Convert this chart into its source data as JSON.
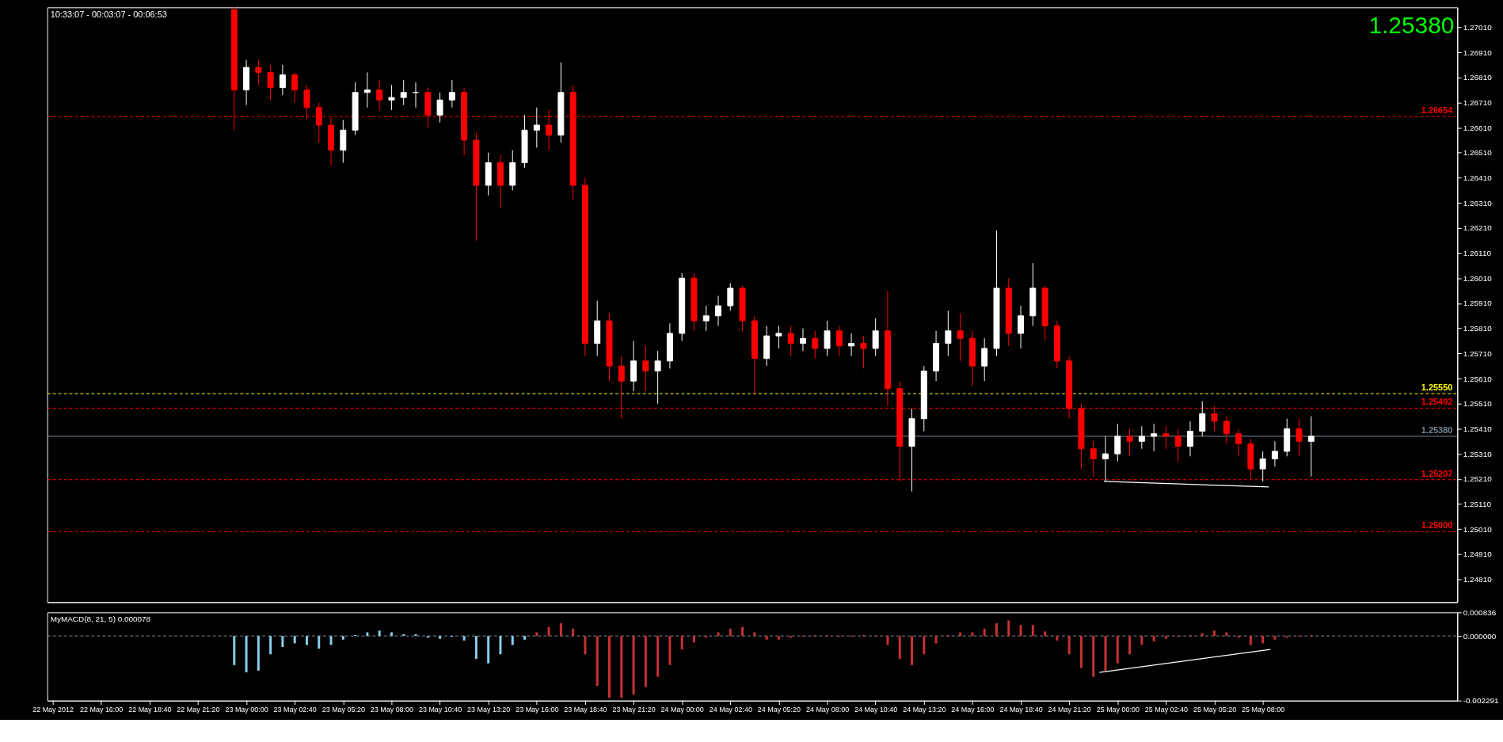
{
  "chart_data": [
    {
      "type": "candlestick",
      "tick_labels": "y",
      "grid": false,
      "annotations": [
        "10:33:07 - 00:03:07 - 00:06:53",
        "1.25380"
      ],
      "xlim": [
        "2012-05-22T13:15",
        "2012-05-25T18:30"
      ],
      "ylim": [
        1.24719,
        1.27089
      ],
      "yticks": [
        {
          "value": 1.2481,
          "label": "1.24810"
        },
        {
          "value": 1.2491,
          "label": "1.24910"
        },
        {
          "value": 1.2501,
          "label": "1.25010"
        },
        {
          "value": 1.2511,
          "label": "1.25110"
        },
        {
          "value": 1.2521,
          "label": "1.25210"
        },
        {
          "value": 1.2531,
          "label": "1.25310"
        },
        {
          "value": 1.2541,
          "label": "1.25410"
        },
        {
          "value": 1.2551,
          "label": "1.25510"
        },
        {
          "value": 1.2561,
          "label": "1.25610"
        },
        {
          "value": 1.2571,
          "label": "1.25710"
        },
        {
          "value": 1.2581,
          "label": "1.25810"
        },
        {
          "value": 1.2591,
          "label": "1.25910"
        },
        {
          "value": 1.2601,
          "label": "1.26010"
        },
        {
          "value": 1.2611,
          "label": "1.26110"
        },
        {
          "value": 1.2621,
          "label": "1.26210"
        },
        {
          "value": 1.2631,
          "label": "1.26310"
        },
        {
          "value": 1.2641,
          "label": "1.26410"
        },
        {
          "value": 1.2651,
          "label": "1.26510"
        },
        {
          "value": 1.2661,
          "label": "1.26610"
        },
        {
          "value": 1.2671,
          "label": "1.26710"
        },
        {
          "value": 1.2681,
          "label": "1.26810"
        },
        {
          "value": 1.2691,
          "label": "1.26910"
        },
        {
          "value": 1.2701,
          "label": "1.27010"
        }
      ],
      "ref_lines": [
        {
          "axis": "y",
          "value": 1.26654,
          "label": "1.26654",
          "color": "#ff0000",
          "line_style": "dashed"
        },
        {
          "axis": "y",
          "value": 1.2555,
          "label": "1.25550",
          "color": "#ffff00",
          "line_style": "dashed"
        },
        {
          "axis": "y",
          "value": 1.25492,
          "label": "1.25492",
          "color": "#ff0000",
          "line_style": "dashed"
        },
        {
          "axis": "y",
          "value": 1.2538,
          "label": "1.25380",
          "color": "#778899",
          "line_style": "solid"
        },
        {
          "axis": "y",
          "value": 1.25207,
          "label": "1.25207",
          "color": "#ff0000",
          "line_style": "dashed"
        },
        {
          "axis": "y",
          "value": 1.25,
          "label": "1.25000",
          "color": "#ff0000",
          "line_style": "dashed"
        }
      ],
      "x": [
        "2012-05-22T23:20",
        "2012-05-23T00:00",
        "2012-05-23T00:40",
        "2012-05-23T01:20",
        "2012-05-23T02:00",
        "2012-05-23T02:40",
        "2012-05-23T03:20",
        "2012-05-23T04:00",
        "2012-05-23T04:40",
        "2012-05-23T05:20",
        "2012-05-23T06:00",
        "2012-05-23T06:40",
        "2012-05-23T07:20",
        "2012-05-23T08:00",
        "2012-05-23T08:40",
        "2012-05-23T09:20",
        "2012-05-23T10:00",
        "2012-05-23T10:40",
        "2012-05-23T11:20",
        "2012-05-23T12:00",
        "2012-05-23T12:40",
        "2012-05-23T13:20",
        "2012-05-23T14:00",
        "2012-05-23T14:40",
        "2012-05-23T15:20",
        "2012-05-23T16:00",
        "2012-05-23T16:40",
        "2012-05-23T17:20",
        "2012-05-23T18:00",
        "2012-05-23T18:40",
        "2012-05-23T19:20",
        "2012-05-23T20:00",
        "2012-05-23T20:40",
        "2012-05-23T21:20",
        "2012-05-23T22:00",
        "2012-05-23T22:40",
        "2012-05-23T23:20",
        "2012-05-24T00:00",
        "2012-05-24T00:40",
        "2012-05-24T01:20",
        "2012-05-24T02:00",
        "2012-05-24T02:40",
        "2012-05-24T03:20",
        "2012-05-24T04:00",
        "2012-05-24T04:40",
        "2012-05-24T05:20",
        "2012-05-24T06:00",
        "2012-05-24T06:40",
        "2012-05-24T07:20",
        "2012-05-24T08:00",
        "2012-05-24T08:40",
        "2012-05-24T09:20",
        "2012-05-24T10:00",
        "2012-05-24T10:40",
        "2012-05-24T11:20",
        "2012-05-24T12:00",
        "2012-05-24T12:40",
        "2012-05-24T13:20",
        "2012-05-24T14:00",
        "2012-05-24T14:40",
        "2012-05-24T15:20",
        "2012-05-24T16:00",
        "2012-05-24T16:40",
        "2012-05-24T17:20",
        "2012-05-24T18:00",
        "2012-05-24T18:40",
        "2012-05-24T19:20",
        "2012-05-24T20:00",
        "2012-05-24T20:40",
        "2012-05-24T21:20",
        "2012-05-24T22:00",
        "2012-05-24T22:40",
        "2012-05-24T23:20",
        "2012-05-25T00:00",
        "2012-05-25T00:40",
        "2012-05-25T01:20",
        "2012-05-25T02:00",
        "2012-05-25T02:40",
        "2012-05-25T03:20",
        "2012-05-25T04:00",
        "2012-05-25T04:40",
        "2012-05-25T05:20",
        "2012-05-25T06:00",
        "2012-05-25T06:40",
        "2012-05-25T07:20",
        "2012-05-25T08:00",
        "2012-05-25T08:40",
        "2012-05-25T09:20",
        "2012-05-25T10:00",
        "2012-05-25T10:40"
      ],
      "ohlc": [
        [
          1.2708,
          1.2709,
          1.266,
          1.2676
        ],
        [
          1.2676,
          1.2688,
          1.267,
          1.2685
        ],
        [
          1.2685,
          1.2688,
          1.2678,
          1.2683
        ],
        [
          1.2683,
          1.2686,
          1.2672,
          1.2677
        ],
        [
          1.2677,
          1.2686,
          1.2674,
          1.2682
        ],
        [
          1.2682,
          1.2683,
          1.2671,
          1.2676
        ],
        [
          1.2676,
          1.2678,
          1.2664,
          1.2669
        ],
        [
          1.2669,
          1.2671,
          1.2655,
          1.2662
        ],
        [
          1.2662,
          1.2665,
          1.2646,
          1.2652
        ],
        [
          1.2652,
          1.2664,
          1.2647,
          1.266
        ],
        [
          1.266,
          1.2679,
          1.2658,
          1.2675
        ],
        [
          1.2675,
          1.2683,
          1.2669,
          1.2676
        ],
        [
          1.2676,
          1.268,
          1.2668,
          1.2672
        ],
        [
          1.2672,
          1.2678,
          1.2668,
          1.2673
        ],
        [
          1.2673,
          1.268,
          1.267,
          1.2675
        ],
        [
          1.2675,
          1.2679,
          1.2669,
          1.2675
        ],
        [
          1.2675,
          1.2677,
          1.2661,
          1.2666
        ],
        [
          1.2666,
          1.2675,
          1.2663,
          1.2672
        ],
        [
          1.2672,
          1.268,
          1.2669,
          1.2675
        ],
        [
          1.2675,
          1.2677,
          1.265,
          1.2656
        ],
        [
          1.2656,
          1.2659,
          1.2616,
          1.2638
        ],
        [
          1.2638,
          1.2651,
          1.2634,
          1.2647
        ],
        [
          1.2647,
          1.265,
          1.2629,
          1.2638
        ],
        [
          1.2638,
          1.2652,
          1.2636,
          1.2647
        ],
        [
          1.2647,
          1.2666,
          1.2645,
          1.266
        ],
        [
          1.266,
          1.2669,
          1.2653,
          1.2662
        ],
        [
          1.2662,
          1.2668,
          1.2652,
          1.2658
        ],
        [
          1.2658,
          1.2687,
          1.2655,
          1.2675
        ],
        [
          1.2675,
          1.2678,
          1.2632,
          1.2638
        ],
        [
          1.2638,
          1.2641,
          1.257,
          1.2575
        ],
        [
          1.2575,
          1.2592,
          1.257,
          1.2584
        ],
        [
          1.2584,
          1.2587,
          1.256,
          1.2566
        ],
        [
          1.2566,
          1.257,
          1.2545,
          1.256
        ],
        [
          1.256,
          1.2576,
          1.2556,
          1.2568
        ],
        [
          1.2568,
          1.2574,
          1.2556,
          1.2564
        ],
        [
          1.2564,
          1.2572,
          1.2551,
          1.2568
        ],
        [
          1.2568,
          1.2583,
          1.2565,
          1.2579
        ],
        [
          1.2579,
          1.2603,
          1.2576,
          1.2601
        ],
        [
          1.2601,
          1.2603,
          1.258,
          1.2584
        ],
        [
          1.2584,
          1.259,
          1.258,
          1.2586
        ],
        [
          1.2586,
          1.2594,
          1.2582,
          1.259
        ],
        [
          1.259,
          1.2599,
          1.2588,
          1.2597
        ],
        [
          1.2597,
          1.2598,
          1.258,
          1.2584
        ],
        [
          1.2584,
          1.2586,
          1.2555,
          1.2569
        ],
        [
          1.2569,
          1.2582,
          1.2566,
          1.2578
        ],
        [
          1.2578,
          1.2582,
          1.2573,
          1.2579
        ],
        [
          1.2579,
          1.2582,
          1.257,
          1.2575
        ],
        [
          1.2575,
          1.2581,
          1.2572,
          1.2577
        ],
        [
          1.2577,
          1.258,
          1.2569,
          1.2573
        ],
        [
          1.2573,
          1.2584,
          1.257,
          1.258
        ],
        [
          1.258,
          1.2582,
          1.257,
          1.2574
        ],
        [
          1.2574,
          1.2579,
          1.257,
          1.2575
        ],
        [
          1.2575,
          1.2578,
          1.2565,
          1.2573
        ],
        [
          1.2573,
          1.2585,
          1.257,
          1.258
        ],
        [
          1.258,
          1.2596,
          1.255,
          1.2557
        ],
        [
          1.2557,
          1.256,
          1.252,
          1.2534
        ],
        [
          1.2534,
          1.2549,
          1.2516,
          1.2545
        ],
        [
          1.2545,
          1.2566,
          1.254,
          1.2564
        ],
        [
          1.2564,
          1.258,
          1.256,
          1.2575
        ],
        [
          1.2575,
          1.2588,
          1.257,
          1.258
        ],
        [
          1.258,
          1.2587,
          1.2568,
          1.2577
        ],
        [
          1.2577,
          1.258,
          1.2558,
          1.2566
        ],
        [
          1.2566,
          1.2577,
          1.256,
          1.2573
        ],
        [
          1.2573,
          1.262,
          1.257,
          1.2597
        ],
        [
          1.2597,
          1.2601,
          1.2574,
          1.2579
        ],
        [
          1.2579,
          1.259,
          1.2573,
          1.2586
        ],
        [
          1.2586,
          1.2607,
          1.2582,
          1.2597
        ],
        [
          1.2597,
          1.2598,
          1.2576,
          1.2582
        ],
        [
          1.2582,
          1.2584,
          1.2565,
          1.2568
        ],
        [
          1.2568,
          1.257,
          1.2545,
          1.2549
        ],
        [
          1.2549,
          1.2551,
          1.2525,
          1.2533
        ],
        [
          1.2533,
          1.2536,
          1.2522,
          1.2529
        ],
        [
          1.2529,
          1.2538,
          1.252,
          1.2531
        ],
        [
          1.2531,
          1.2543,
          1.2528,
          1.2538
        ],
        [
          1.2538,
          1.2541,
          1.253,
          1.2536
        ],
        [
          1.2536,
          1.2542,
          1.2533,
          1.2538
        ],
        [
          1.2538,
          1.2543,
          1.2532,
          1.2539
        ],
        [
          1.2539,
          1.2542,
          1.2533,
          1.2538
        ],
        [
          1.2538,
          1.2541,
          1.2528,
          1.2534
        ],
        [
          1.2534,
          1.2544,
          1.253,
          1.254
        ],
        [
          1.254,
          1.2552,
          1.2538,
          1.2547
        ],
        [
          1.2547,
          1.255,
          1.254,
          1.2544
        ],
        [
          1.2544,
          1.2546,
          1.2535,
          1.2539
        ],
        [
          1.2539,
          1.2541,
          1.253,
          1.2535
        ],
        [
          1.2535,
          1.2537,
          1.2521,
          1.2525
        ],
        [
          1.2525,
          1.2532,
          1.252,
          1.2529
        ],
        [
          1.2529,
          1.2536,
          1.2526,
          1.2532
        ],
        [
          1.2532,
          1.2545,
          1.253,
          1.2541
        ],
        [
          1.2541,
          1.2545,
          1.253,
          1.2536
        ],
        [
          1.2536,
          1.2546,
          1.2522,
          1.2538
        ]
      ],
      "colors": [
        "#ff0000",
        "#ffffff",
        "#ff0000",
        "#ff0000",
        "#ffffff",
        "#ff0000",
        "#ff0000",
        "#ff0000",
        "#ff0000",
        "#ffffff",
        "#ffffff",
        "#ffffff",
        "#ff0000",
        "#ffffff",
        "#ffffff",
        "#ffffff",
        "#ff0000",
        "#ffffff",
        "#ffffff",
        "#ff0000",
        "#ff0000",
        "#ffffff",
        "#ff0000",
        "#ffffff",
        "#ffffff",
        "#ffffff",
        "#ff0000",
        "#ffffff",
        "#ff0000",
        "#ff0000",
        "#ffffff",
        "#ff0000",
        "#ff0000",
        "#ffffff",
        "#ff0000",
        "#ffffff",
        "#ffffff",
        "#ffffff",
        "#ff0000",
        "#ffffff",
        "#ffffff",
        "#ffffff",
        "#ff0000",
        "#ff0000",
        "#ffffff",
        "#ffffff",
        "#ff0000",
        "#ffffff",
        "#ff0000",
        "#ffffff",
        "#ff0000",
        "#ffffff",
        "#ff0000",
        "#ffffff",
        "#ff0000",
        "#ff0000",
        "#ffffff",
        "#ffffff",
        "#ffffff",
        "#ffffff",
        "#ff0000",
        "#ff0000",
        "#ffffff",
        "#ffffff",
        "#ff0000",
        "#ffffff",
        "#ffffff",
        "#ff0000",
        "#ff0000",
        "#ff0000",
        "#ff0000",
        "#ff0000",
        "#ffffff",
        "#ffffff",
        "#ff0000",
        "#ffffff",
        "#ffffff",
        "#ff0000",
        "#ff0000",
        "#ffffff",
        "#ffffff",
        "#ff0000",
        "#ff0000",
        "#ff0000",
        "#ff0000",
        "#ffffff",
        "#ffffff",
        "#ffffff",
        "#ff0000",
        "#ffffff"
      ],
      "series": [
        {
          "type": "line",
          "color": "#ffffff",
          "line_style": "solid",
          "x": [
            "2012-05-24T23:15",
            "2012-05-25T08:20"
          ],
          "values": [
            1.252,
            1.25178
          ]
        }
      ]
    },
    {
      "type": "bar",
      "title": "MyMACD(8, 21, 5) 0.000078",
      "grid": false,
      "xlim": [
        "2012-05-22T13:15",
        "2012-05-25T18:30"
      ],
      "ylim": [
        -0.002291,
        0.000836
      ],
      "yticks": [
        {
          "value": 0.000836,
          "label": "0.000836"
        },
        {
          "value": 0,
          "label": "0.000000"
        },
        {
          "value": -0.002291,
          "label": "-0.002291"
        }
      ],
      "xticks": [
        {
          "value": "2012-05-22T13:20",
          "label": "22 May 2012"
        },
        {
          "value": "2012-05-22T16:00",
          "label": "22 May 16:00"
        },
        {
          "value": "2012-05-22T18:40",
          "label": "22 May 18:40"
        },
        {
          "value": "2012-05-22T21:20",
          "label": "22 May 21:20"
        },
        {
          "value": "2012-05-23T00:00",
          "label": "23 May 00:00"
        },
        {
          "value": "2012-05-23T02:40",
          "label": "23 May 02:40"
        },
        {
          "value": "2012-05-23T05:20",
          "label": "23 May 05:20"
        },
        {
          "value": "2012-05-23T08:00",
          "label": "23 May 08:00"
        },
        {
          "value": "2012-05-23T10:40",
          "label": "23 May 10:40"
        },
        {
          "value": "2012-05-23T13:20",
          "label": "23 May 13:20"
        },
        {
          "value": "2012-05-23T16:00",
          "label": "23 May 16:00"
        },
        {
          "value": "2012-05-23T18:40",
          "label": "23 May 18:40"
        },
        {
          "value": "2012-05-23T21:20",
          "label": "23 May 21:20"
        },
        {
          "value": "2012-05-24T00:00",
          "label": "24 May 00:00"
        },
        {
          "value": "2012-05-24T02:40",
          "label": "24 May 02:40"
        },
        {
          "value": "2012-05-24T05:20",
          "label": "24 May 05:20"
        },
        {
          "value": "2012-05-24T08:00",
          "label": "24 May 08:00"
        },
        {
          "value": "2012-05-24T10:40",
          "label": "24 May 10:40"
        },
        {
          "value": "2012-05-24T13:20",
          "label": "24 May 13:20"
        },
        {
          "value": "2012-05-24T16:00",
          "label": "24 May 16:00"
        },
        {
          "value": "2012-05-24T18:40",
          "label": "24 May 18:40"
        },
        {
          "value": "2012-05-24T21:20",
          "label": "24 May 21:20"
        },
        {
          "value": "2012-05-25T00:00",
          "label": "25 May 00:00"
        },
        {
          "value": "2012-05-25T02:40",
          "label": "25 May 02:40"
        },
        {
          "value": "2012-05-25T05:20",
          "label": "25 May 05:20"
        },
        {
          "value": "2012-05-25T08:00",
          "label": "25 May 08:00"
        }
      ],
      "ref_lines": [
        {
          "axis": "y",
          "value": 0,
          "color": "#778899",
          "line_style": "dashed"
        }
      ],
      "series": [
        {
          "type": "bar",
          "x": [
            "2012-05-22T23:20",
            "2012-05-23T00:00",
            "2012-05-23T00:40",
            "2012-05-23T01:20",
            "2012-05-23T02:00",
            "2012-05-23T02:40",
            "2012-05-23T03:20",
            "2012-05-23T04:00",
            "2012-05-23T04:40",
            "2012-05-23T05:20",
            "2012-05-23T06:00",
            "2012-05-23T06:40",
            "2012-05-23T07:20",
            "2012-05-23T08:00",
            "2012-05-23T08:40",
            "2012-05-23T09:20",
            "2012-05-23T10:00",
            "2012-05-23T10:40",
            "2012-05-23T11:20",
            "2012-05-23T12:00",
            "2012-05-23T12:40",
            "2012-05-23T13:20",
            "2012-05-23T14:00",
            "2012-05-23T14:40",
            "2012-05-23T15:20",
            "2012-05-23T16:00",
            "2012-05-23T16:40",
            "2012-05-23T17:20",
            "2012-05-23T18:00",
            "2012-05-23T18:40",
            "2012-05-23T19:20",
            "2012-05-23T20:00",
            "2012-05-23T20:40",
            "2012-05-23T21:20",
            "2012-05-23T22:00",
            "2012-05-23T22:40",
            "2012-05-23T23:20",
            "2012-05-24T00:00",
            "2012-05-24T00:40",
            "2012-05-24T01:20",
            "2012-05-24T02:00",
            "2012-05-24T02:40",
            "2012-05-24T03:20",
            "2012-05-24T04:00",
            "2012-05-24T04:40",
            "2012-05-24T05:20",
            "2012-05-24T06:00",
            "2012-05-24T06:40",
            "2012-05-24T07:20",
            "2012-05-24T08:00",
            "2012-05-24T08:40",
            "2012-05-24T09:20",
            "2012-05-24T10:00",
            "2012-05-24T10:40",
            "2012-05-24T11:20",
            "2012-05-24T12:00",
            "2012-05-24T12:40",
            "2012-05-24T13:20",
            "2012-05-24T14:00",
            "2012-05-24T14:40",
            "2012-05-24T15:20",
            "2012-05-24T16:00",
            "2012-05-24T16:40",
            "2012-05-24T17:20",
            "2012-05-24T18:00",
            "2012-05-24T18:40",
            "2012-05-24T19:20",
            "2012-05-24T20:00",
            "2012-05-24T20:40",
            "2012-05-24T21:20",
            "2012-05-24T22:00",
            "2012-05-24T22:40",
            "2012-05-24T23:20",
            "2012-05-25T00:00",
            "2012-05-25T00:40",
            "2012-05-25T01:20",
            "2012-05-25T02:00",
            "2012-05-25T02:40",
            "2012-05-25T03:20",
            "2012-05-25T04:00",
            "2012-05-25T04:40",
            "2012-05-25T05:20",
            "2012-05-25T06:00",
            "2012-05-25T06:40",
            "2012-05-25T07:20",
            "2012-05-25T08:00",
            "2012-05-25T08:40",
            "2012-05-25T09:20",
            "2012-05-25T10:00",
            "2012-05-25T10:40"
          ],
          "values": [
            -0.00103,
            -0.00129,
            -0.00123,
            -0.00065,
            -0.00039,
            -0.00026,
            -0.00032,
            -0.00045,
            -0.00032,
            -0.00013,
            3e-05,
            0.00013,
            0.00019,
            0.00013,
            6e-05,
            6e-05,
            -6e-05,
            -0.0001,
            -3e-05,
            -0.00016,
            -0.00081,
            -0.00097,
            -0.00065,
            -0.00032,
            -0.00013,
            0.00013,
            0.00032,
            0.00045,
            0.00026,
            -0.00065,
            -0.00177,
            -0.00219,
            -0.00219,
            -0.00207,
            -0.00181,
            -0.00145,
            -0.00103,
            -0.00048,
            -0.00023,
            -6e-05,
            0.00013,
            0.00026,
            0.00032,
            0.00013,
            -0.00013,
            -0.00013,
            -6e-05,
            -3e-05,
            3e-05,
            3e-05,
            -3e-05,
            -3e-05,
            3e-05,
            -3e-05,
            -0.00032,
            -0.00081,
            -0.00103,
            -0.00065,
            -0.00026,
            3e-05,
            0.00013,
            0.00013,
            0.00026,
            0.00045,
            0.00055,
            0.00039,
            0.00039,
            0.00016,
            -0.00016,
            -0.00065,
            -0.00113,
            -0.00145,
            -0.00123,
            -0.00097,
            -0.00065,
            -0.00032,
            -0.00019,
            -0.0001,
            -3e-05,
            3e-05,
            0.0001,
            0.00019,
            0.00013,
            -6e-05,
            -0.00032,
            -0.00026,
            -0.00013,
            -6e-05,
            -3e-05,
            3e-05
          ],
          "colors": [
            "#87ceeb",
            "#87ceeb",
            "#87ceeb",
            "#87ceeb",
            "#87ceeb",
            "#87ceeb",
            "#87ceeb",
            "#87ceeb",
            "#87ceeb",
            "#87ceeb",
            "#87ceeb",
            "#87ceeb",
            "#87ceeb",
            "#87ceeb",
            "#87ceeb",
            "#87ceeb",
            "#87ceeb",
            "#87ceeb",
            "#87ceeb",
            "#87ceeb",
            "#87ceeb",
            "#87ceeb",
            "#87ceeb",
            "#87ceeb",
            "#87ceeb",
            "#c83232",
            "#c83232",
            "#c83232",
            "#c83232",
            "#c83232",
            "#c83232",
            "#c83232",
            "#c83232",
            "#c83232",
            "#c83232",
            "#c83232",
            "#c83232",
            "#c83232",
            "#c83232",
            "#c83232",
            "#c83232",
            "#c83232",
            "#c83232",
            "#c83232",
            "#c83232",
            "#c83232",
            "#c83232",
            "#c83232",
            "#c83232",
            "#c83232",
            "#c83232",
            "#c83232",
            "#c83232",
            "#c83232",
            "#c83232",
            "#c83232",
            "#c83232",
            "#c83232",
            "#c83232",
            "#c83232",
            "#c83232",
            "#c83232",
            "#c83232",
            "#c83232",
            "#c83232",
            "#c83232",
            "#c83232",
            "#c83232",
            "#c83232",
            "#c83232",
            "#c83232",
            "#c83232",
            "#c83232",
            "#c83232",
            "#c83232",
            "#c83232",
            "#c83232",
            "#c83232",
            "#c83232",
            "#c83232",
            "#c83232",
            "#c83232",
            "#c83232",
            "#c83232",
            "#c83232",
            "#c83232",
            "#c83232",
            "#c83232",
            "#c83232",
            "#c83232"
          ]
        },
        {
          "type": "line",
          "color": "#ffffff",
          "line_style": "solid",
          "x": [
            "2012-05-24T23:00",
            "2012-05-25T08:25"
          ],
          "values": [
            -0.00129,
            -0.00048
          ]
        }
      ]
    }
  ]
}
